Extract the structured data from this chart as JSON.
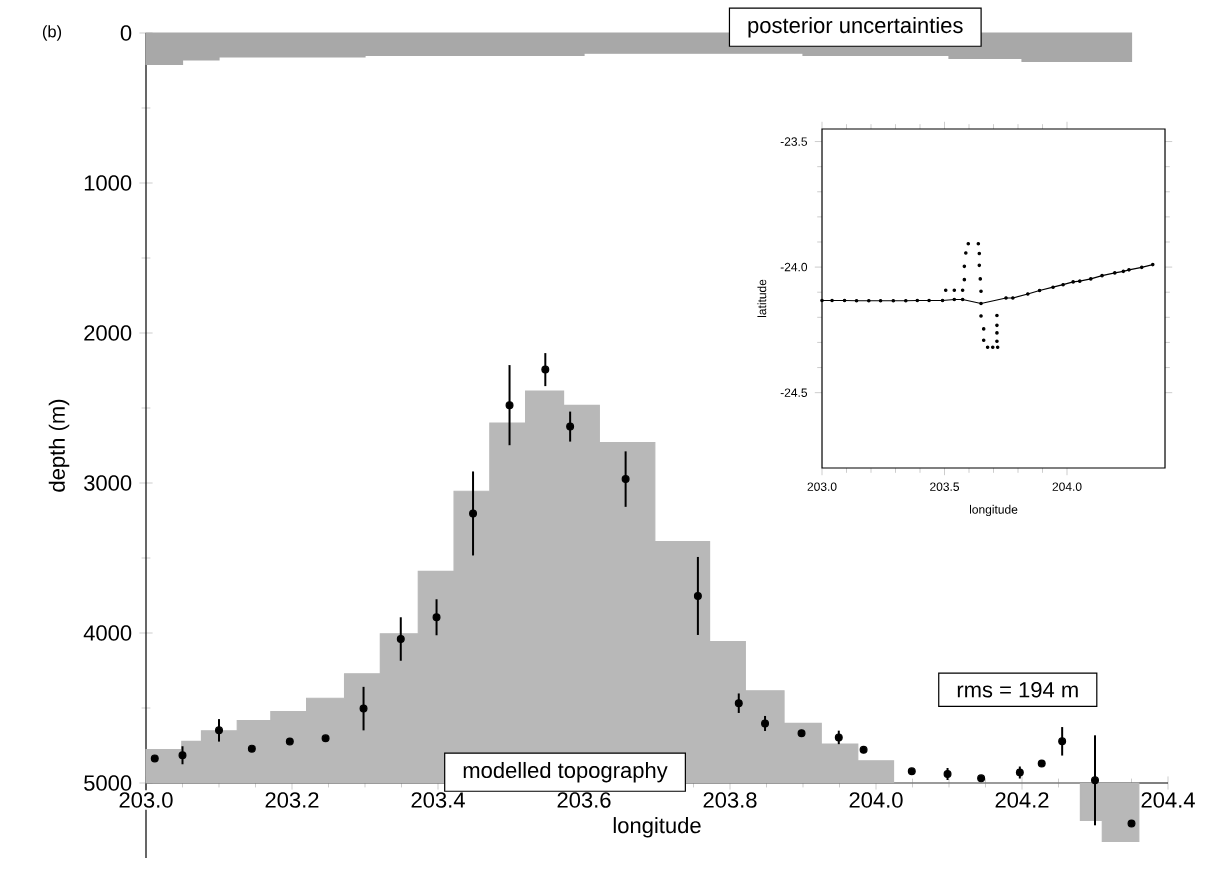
{
  "chart_data": [
    {
      "type": "area",
      "xlabel": "longitude",
      "ylabel": "depth (m)",
      "xlim": [
        203.0,
        204.4
      ],
      "ylim": [
        5500,
        0
      ],
      "xticks": [
        {
          "value": 203.0,
          "label": "203.0"
        },
        {
          "value": 203.2,
          "label": "203.2"
        },
        {
          "value": 203.4,
          "label": "203.4"
        },
        {
          "value": 203.6,
          "label": "203.6"
        },
        {
          "value": 203.8,
          "label": "203.8"
        },
        {
          "value": 204.0,
          "label": "204.0"
        },
        {
          "value": 204.2,
          "label": "204.2"
        },
        {
          "value": 204.4,
          "label": "204.4"
        }
      ],
      "yticks": [
        0,
        1000,
        2000,
        3000,
        4000,
        5000
      ],
      "series": [
        {
          "color": "#a8a8a8",
          "x": [
            203.0,
            203.05,
            203.05,
            203.1,
            203.1,
            203.3,
            203.3,
            203.6,
            203.6,
            203.9,
            203.9,
            204.1,
            204.1,
            204.2,
            204.2,
            204.35
          ],
          "values": [
            210,
            210,
            180,
            180,
            160,
            160,
            150,
            150,
            135,
            135,
            150,
            150,
            170,
            170,
            190,
            190
          ]
        },
        {
          "color": "#b8b8b8",
          "x": [
            203.0,
            203.0,
            203.049,
            203.049,
            203.076,
            203.076,
            203.125,
            203.125,
            203.171,
            203.171,
            203.22,
            203.22,
            203.272,
            203.272,
            203.321,
            203.321,
            203.373,
            203.373,
            203.422,
            203.422,
            203.471,
            203.471,
            203.52,
            203.52,
            203.572,
            203.572,
            203.621,
            203.621,
            203.697,
            203.697,
            203.772,
            203.772,
            203.821,
            203.821,
            203.874,
            203.874,
            203.925,
            203.925,
            203.975,
            203.975,
            204.024,
            204.024,
            204.28,
            204.28,
            204.31,
            204.31,
            204.36,
            204.36
          ],
          "values": [
            5000,
            4777,
            4777,
            4723,
            4723,
            4652,
            4652,
            4584,
            4584,
            4524,
            4524,
            4435,
            4435,
            4272,
            4272,
            4005,
            4005,
            3589,
            3589,
            3055,
            3055,
            2600,
            2600,
            2387,
            2387,
            2482,
            2482,
            2730,
            2730,
            3390,
            3390,
            4057,
            4057,
            4385,
            4385,
            4603,
            4603,
            4740,
            4740,
            4852,
            4852,
            5000,
            5000,
            5250,
            5250,
            5390,
            5390,
            5000
          ]
        },
        {
          "type": "scatter",
          "color": "#000000",
          "x": [
            203.012,
            203.05,
            203.1,
            203.145,
            203.197,
            203.246,
            203.298,
            203.349,
            203.398,
            203.448,
            203.498,
            203.547,
            203.581,
            203.657,
            203.756,
            203.812,
            203.848,
            203.898,
            203.949,
            203.983,
            204.049,
            204.098,
            204.144,
            204.197,
            204.227,
            204.255,
            204.3,
            204.35
          ],
          "values": [
            4836,
            4815,
            4649,
            4771,
            4723,
            4702,
            4504,
            4040,
            3895,
            3203,
            2481,
            2244,
            2624,
            2974,
            3753,
            4468,
            4603,
            4668,
            4696,
            4779,
            4922,
            4940,
            4969,
            4930,
            4870,
            4722,
            4982,
            5270
          ],
          "errors": [
            null,
            60,
            75,
            null,
            null,
            null,
            145,
            145,
            120,
            280,
            267,
            110,
            100,
            185,
            260,
            65,
            50,
            null,
            45,
            null,
            null,
            40,
            null,
            40,
            null,
            95,
            300,
            null
          ]
        }
      ],
      "annotations": [
        "(b)",
        "posterior uncertainties",
        "modelled topography",
        "rms = 194 m"
      ]
    },
    {
      "type": "line",
      "xlabel": "longitude",
      "ylabel": "latitude",
      "xlim": [
        203.0,
        204.4
      ],
      "ylim": [
        -24.8,
        -23.45
      ],
      "xticks": [
        {
          "value": 203.0,
          "label": "203.0"
        },
        {
          "value": 203.5,
          "label": "203.5"
        },
        {
          "value": 204.0,
          "label": "204.0"
        }
      ],
      "yticks": [
        {
          "value": -24.5,
          "label": "-24.5"
        },
        {
          "value": -24.0,
          "label": "-24.0"
        },
        {
          "value": -23.5,
          "label": "-23.5"
        }
      ],
      "marker": "circle",
      "series": [
        {
          "color": "#000000",
          "x": [
            203.0,
            203.041,
            203.092,
            203.141,
            203.191,
            203.239,
            203.291,
            203.342,
            203.389,
            203.437,
            203.492,
            203.54,
            203.574,
            203.649,
            203.751,
            203.779,
            203.84,
            203.888,
            203.943,
            203.984,
            204.025,
            204.052,
            204.097,
            204.143,
            204.195,
            204.23,
            204.253,
            204.305,
            204.35
          ],
          "values": [
            -24.133,
            -24.133,
            -24.133,
            -24.134,
            -24.134,
            -24.134,
            -24.134,
            -24.134,
            -24.133,
            -24.133,
            -24.133,
            -24.129,
            -24.129,
            -24.145,
            -24.123,
            -24.123,
            -24.107,
            -24.093,
            -24.08,
            -24.07,
            -24.059,
            -24.056,
            -24.047,
            -24.034,
            -24.023,
            -24.017,
            -24.011,
            -24.001,
            -23.99
          ]
        },
        {
          "type": "scatter",
          "color": "#000000",
          "x": [
            203.505,
            203.54,
            203.574,
            203.581,
            203.581,
            203.587,
            203.597,
            203.638,
            203.642,
            203.642,
            203.646,
            203.649,
            203.649,
            203.66,
            203.66,
            203.676,
            203.697,
            203.717,
            203.714,
            203.714,
            203.714,
            203.714
          ],
          "values": [
            -24.092,
            -24.092,
            -24.092,
            -24.05,
            -23.997,
            -23.944,
            -23.907,
            -23.907,
            -23.946,
            -23.993,
            -24.047,
            -24.096,
            -24.195,
            -24.246,
            -24.291,
            -24.319,
            -24.319,
            -24.319,
            -24.295,
            -24.262,
            -24.232,
            -24.193
          ]
        }
      ]
    }
  ]
}
